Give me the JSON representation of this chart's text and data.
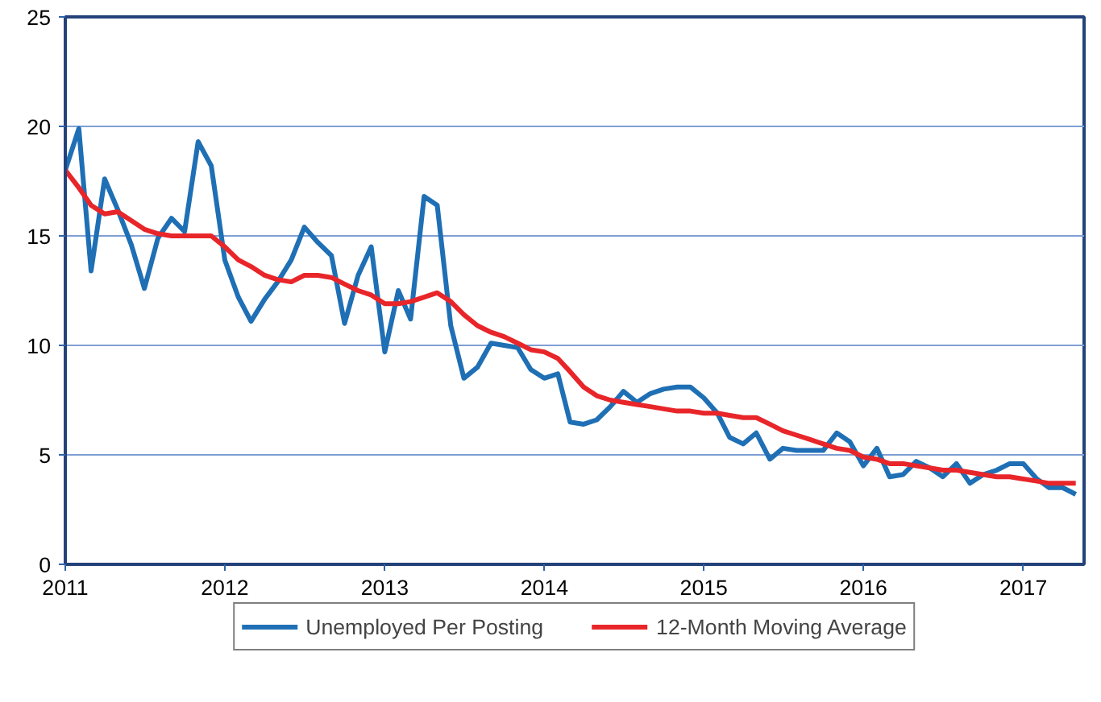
{
  "chart_data": {
    "type": "line",
    "x": [
      "2011-01",
      "2011-02",
      "2011-03",
      "2011-04",
      "2011-05",
      "2011-06",
      "2011-07",
      "2011-08",
      "2011-09",
      "2011-10",
      "2011-11",
      "2011-12",
      "2012-01",
      "2012-02",
      "2012-03",
      "2012-04",
      "2012-05",
      "2012-06",
      "2012-07",
      "2012-08",
      "2012-09",
      "2012-10",
      "2012-11",
      "2012-12",
      "2013-01",
      "2013-02",
      "2013-03",
      "2013-04",
      "2013-05",
      "2013-06",
      "2013-07",
      "2013-08",
      "2013-09",
      "2013-10",
      "2013-11",
      "2013-12",
      "2014-01",
      "2014-02",
      "2014-03",
      "2014-04",
      "2014-05",
      "2014-06",
      "2014-07",
      "2014-08",
      "2014-09",
      "2014-10",
      "2014-11",
      "2014-12",
      "2015-01",
      "2015-02",
      "2015-03",
      "2015-04",
      "2015-05",
      "2015-06",
      "2015-07",
      "2015-08",
      "2015-09",
      "2015-10",
      "2015-11",
      "2015-12",
      "2016-01",
      "2016-02",
      "2016-03",
      "2016-04",
      "2016-05",
      "2016-06",
      "2016-07",
      "2016-08",
      "2016-09",
      "2016-10",
      "2016-11",
      "2016-12",
      "2017-01",
      "2017-02",
      "2017-03",
      "2017-04",
      "2017-05"
    ],
    "series": [
      {
        "name": "Unemployed Per Posting",
        "color": "#1f6fb5",
        "values": [
          18.0,
          19.9,
          13.4,
          17.6,
          16.2,
          14.6,
          12.6,
          14.9,
          15.8,
          15.2,
          19.3,
          18.2,
          13.9,
          12.2,
          11.1,
          12.1,
          12.9,
          13.9,
          15.4,
          14.7,
          14.1,
          11.0,
          13.2,
          14.5,
          9.7,
          12.5,
          11.2,
          16.8,
          16.4,
          10.9,
          8.5,
          9.0,
          10.1,
          10.0,
          9.9,
          8.9,
          8.5,
          8.7,
          6.5,
          6.4,
          6.6,
          7.2,
          7.9,
          7.4,
          7.8,
          8.0,
          8.1,
          8.1,
          7.6,
          6.9,
          5.8,
          5.5,
          6.0,
          4.8,
          5.3,
          5.2,
          5.2,
          5.2,
          6.0,
          5.6,
          4.5,
          5.3,
          4.0,
          4.1,
          4.7,
          4.4,
          4.0,
          4.6,
          3.7,
          4.1,
          4.3,
          4.6,
          4.6,
          3.9,
          3.5,
          3.5,
          3.2
        ]
      },
      {
        "name": "12-Month Moving Average",
        "color": "#e8262a",
        "values": [
          18.0,
          17.2,
          16.4,
          16.0,
          16.1,
          15.7,
          15.3,
          15.1,
          15.0,
          15.0,
          15.0,
          15.0,
          14.5,
          13.9,
          13.6,
          13.2,
          13.0,
          12.9,
          13.2,
          13.2,
          13.1,
          12.8,
          12.5,
          12.3,
          11.9,
          11.9,
          12.0,
          12.2,
          12.4,
          12.0,
          11.4,
          10.9,
          10.6,
          10.4,
          10.1,
          9.8,
          9.7,
          9.4,
          8.8,
          8.1,
          7.7,
          7.5,
          7.4,
          7.3,
          7.2,
          7.1,
          7.0,
          7.0,
          6.9,
          6.9,
          6.8,
          6.7,
          6.7,
          6.4,
          6.1,
          5.9,
          5.7,
          5.5,
          5.3,
          5.2,
          4.9,
          4.8,
          4.6,
          4.6,
          4.5,
          4.4,
          4.3,
          4.3,
          4.2,
          4.1,
          4.0,
          4.0,
          3.9,
          3.8,
          3.7,
          3.7,
          3.7
        ]
      }
    ],
    "xlim": [
      "2011-01",
      "2017-05-20"
    ],
    "xticks": [
      "2011",
      "2012",
      "2013",
      "2014",
      "2015",
      "2016",
      "2017"
    ],
    "ylim": [
      0,
      25
    ],
    "yticks": [
      0,
      5,
      10,
      15,
      20,
      25
    ],
    "grid": "y",
    "legend": "bottom",
    "marker": "none",
    "line_style": "solid"
  }
}
